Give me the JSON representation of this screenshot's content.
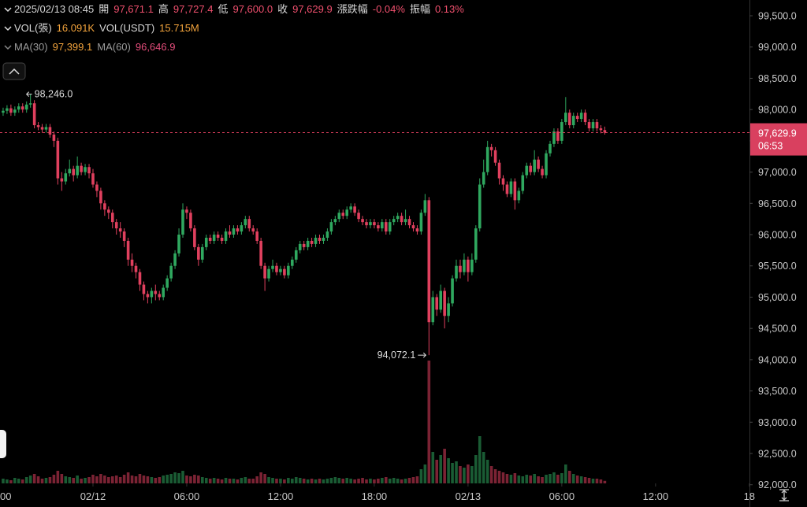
{
  "header": {
    "time": "2025/02/13 08:45",
    "ohlc": [
      [
        "開",
        "97,671.1"
      ],
      [
        "高",
        "97,727.4"
      ],
      [
        "低",
        "97,600.0"
      ],
      [
        "收",
        "97,629.9"
      ],
      [
        "漲跌幅",
        "-0.04%"
      ],
      [
        "振幅",
        "0.13%"
      ]
    ],
    "vol": [
      [
        "VOL(張)",
        "16.091K"
      ],
      [
        "VOL(USDT)",
        "15.715M"
      ]
    ],
    "ma": [
      [
        "MA(30)",
        "97,399.1"
      ],
      [
        "MA(60)",
        "96,646.9"
      ]
    ]
  },
  "chart_data": {
    "type": "candlestick",
    "up_color": "#2fa85f",
    "down_color": "#e0405e",
    "xlim": [
      -5.95,
      42.06
    ],
    "xticks": [
      {
        "value": -6,
        "label": "00"
      },
      {
        "value": 0,
        "label": "02/12"
      },
      {
        "value": 6,
        "label": "06:00"
      },
      {
        "value": 12,
        "label": "12:00"
      },
      {
        "value": 18,
        "label": "18:00"
      },
      {
        "value": 24,
        "label": "02/13"
      },
      {
        "value": 30,
        "label": "06:00"
      },
      {
        "value": 36,
        "label": "12:00"
      },
      {
        "value": 42,
        "label": "18"
      }
    ],
    "ylim": [
      91644,
      99752
    ],
    "yticks": [
      {
        "value": 92000,
        "label": "92,000.0"
      },
      {
        "value": 92500,
        "label": "92,500.0"
      },
      {
        "value": 93000,
        "label": "93,000.0"
      },
      {
        "value": 93500,
        "label": "93,500.0"
      },
      {
        "value": 94000,
        "label": "94,000.0"
      },
      {
        "value": 94500,
        "label": "94,500.0"
      },
      {
        "value": 95000,
        "label": "95,000.0"
      },
      {
        "value": 95500,
        "label": "95,500.0"
      },
      {
        "value": 96000,
        "label": "96,000.0"
      },
      {
        "value": 96500,
        "label": "96,500.0"
      },
      {
        "value": 97000,
        "label": "97,000.0"
      },
      {
        "value": 97500,
        "label": "97,500.0"
      },
      {
        "value": 98000,
        "label": "98,000.0"
      },
      {
        "value": 98500,
        "label": "98,500.0"
      },
      {
        "value": 99000,
        "label": "99,000.0"
      },
      {
        "value": 99500,
        "label": "99,500.0"
      }
    ],
    "vlim": [
      0,
      1000
    ],
    "last_price": {
      "value": 97629.9,
      "label": "97,629.9"
    },
    "countdown": "06:53",
    "high_label": {
      "value": 98246,
      "label": "98,246.0"
    },
    "low_label": {
      "value": 94072.1,
      "label": "94,072.1"
    },
    "x": [
      -5.75,
      -5.5,
      -5.25,
      -5,
      -4.75,
      -4.5,
      -4.25,
      -4,
      -3.75,
      -3.5,
      -3.25,
      -3,
      -2.75,
      -2.5,
      -2.25,
      -2,
      -1.75,
      -1.5,
      -1.25,
      -1,
      -0.75,
      -0.5,
      -0.25,
      0,
      0.25,
      0.5,
      0.75,
      1,
      1.25,
      1.5,
      1.75,
      2,
      2.25,
      2.5,
      2.75,
      3,
      3.25,
      3.5,
      3.75,
      4,
      4.25,
      4.5,
      4.75,
      5,
      5.25,
      5.5,
      5.75,
      6,
      6.25,
      6.5,
      6.75,
      7,
      7.25,
      7.5,
      7.75,
      8,
      8.25,
      8.5,
      8.75,
      9,
      9.25,
      9.5,
      9.75,
      10,
      10.25,
      10.5,
      10.75,
      11,
      11.25,
      11.5,
      11.75,
      12,
      12.25,
      12.5,
      12.75,
      13,
      13.25,
      13.5,
      13.75,
      14,
      14.25,
      14.5,
      14.75,
      15,
      15.25,
      15.5,
      15.75,
      16,
      16.25,
      16.5,
      16.75,
      17,
      17.25,
      17.5,
      17.75,
      18,
      18.25,
      18.5,
      18.75,
      19,
      19.25,
      19.5,
      19.75,
      20,
      20.25,
      20.5,
      20.75,
      21,
      21.25,
      21.5,
      21.75,
      22,
      22.25,
      22.5,
      22.75,
      23,
      23.25,
      23.5,
      23.75,
      24,
      24.25,
      24.5,
      24.75,
      25,
      25.25,
      25.5,
      25.75,
      26,
      26.25,
      26.5,
      26.75,
      27,
      27.25,
      27.5,
      27.75,
      28,
      28.25,
      28.5,
      28.75,
      29,
      29.25,
      29.5,
      29.75,
      30,
      30.25,
      30.5,
      30.75,
      31,
      31.25,
      31.5,
      31.75,
      32,
      32.25,
      32.5,
      32.75
    ],
    "open": [
      97950,
      97980,
      98020,
      97950,
      98000,
      98050,
      98000,
      98080,
      98100,
      97750,
      97720,
      97680,
      97720,
      97600,
      97500,
      96900,
      96850,
      96980,
      97050,
      96950,
      97100,
      97000,
      97080,
      96980,
      96800,
      96700,
      96500,
      96400,
      96350,
      96200,
      96100,
      96050,
      95900,
      95600,
      95500,
      95400,
      95200,
      95050,
      95000,
      95100,
      95050,
      95000,
      95150,
      95300,
      95500,
      95700,
      96000,
      96400,
      96350,
      96100,
      95800,
      95600,
      95800,
      95950,
      95900,
      96000,
      95950,
      95900,
      96050,
      96000,
      96100,
      96050,
      96150,
      96250,
      96100,
      96050,
      95900,
      95500,
      95300,
      95450,
      95500,
      95400,
      95450,
      95350,
      95500,
      95600,
      95750,
      95850,
      95800,
      95900,
      95850,
      95950,
      95900,
      95950,
      96050,
      96200,
      96250,
      96350,
      96300,
      96400,
      96450,
      96350,
      96250,
      96200,
      96150,
      96200,
      96150,
      96100,
      96200,
      96050,
      96200,
      96250,
      96300,
      96200,
      96250,
      96150,
      96100,
      96050,
      96350,
      96550,
      94600,
      95000,
      94800,
      95100,
      94700,
      94900,
      95300,
      95500,
      95400,
      95600,
      95400,
      95600,
      96100,
      96800,
      97000,
      97400,
      97350,
      97150,
      96900,
      96800,
      96650,
      96850,
      96550,
      96700,
      96950,
      97100,
      97000,
      97200,
      97050,
      96950,
      97300,
      97450,
      97650,
      97500,
      97800,
      97950,
      97750,
      97900,
      97850,
      97950,
      97800,
      97700,
      97800,
      97700,
      97671.1
    ],
    "high": [
      98030,
      98070,
      98080,
      98050,
      98100,
      98100,
      98130,
      98246,
      98150,
      97800,
      97770,
      97770,
      97770,
      97650,
      97550,
      97000,
      97050,
      97200,
      97100,
      97250,
      97150,
      97130,
      97130,
      97050,
      96850,
      96750,
      96550,
      96450,
      96400,
      96250,
      96200,
      96100,
      95950,
      95700,
      95550,
      95450,
      95250,
      95100,
      95150,
      95200,
      95100,
      95200,
      95350,
      95550,
      95750,
      96100,
      96500,
      96450,
      96400,
      96150,
      95850,
      95850,
      96000,
      96000,
      96050,
      96050,
      96000,
      96100,
      96150,
      96150,
      96150,
      96200,
      96300,
      96300,
      96150,
      96100,
      95950,
      95550,
      95500,
      95600,
      95550,
      95500,
      95500,
      95550,
      95650,
      95800,
      95900,
      95900,
      95950,
      95950,
      96000,
      96000,
      96000,
      96100,
      96250,
      96300,
      96400,
      96400,
      96450,
      96500,
      96500,
      96400,
      96300,
      96250,
      96250,
      96250,
      96200,
      96250,
      96250,
      96250,
      96300,
      96350,
      96350,
      96400,
      96300,
      96200,
      96150,
      96400,
      96650,
      96600,
      95100,
      95050,
      95200,
      95150,
      95000,
      95350,
      95600,
      95600,
      95700,
      95650,
      95700,
      96150,
      96900,
      97200,
      97500,
      97450,
      97400,
      97200,
      96950,
      96850,
      96900,
      96900,
      96750,
      97000,
      97150,
      97150,
      97350,
      97250,
      97100,
      97350,
      97500,
      97700,
      97700,
      97850,
      98200,
      98000,
      97950,
      97950,
      98000,
      98000,
      97850,
      97850,
      97850,
      97750,
      97727.4
    ],
    "low": [
      97900,
      97930,
      97900,
      97900,
      97950,
      97950,
      97950,
      98030,
      97700,
      97670,
      97630,
      97630,
      97550,
      97400,
      96800,
      96700,
      96800,
      96930,
      96850,
      96900,
      96950,
      96950,
      96900,
      96750,
      96600,
      96400,
      96300,
      96250,
      96100,
      96000,
      95950,
      95800,
      95500,
      95400,
      95300,
      95100,
      94950,
      94900,
      94900,
      94950,
      94950,
      94950,
      95100,
      95250,
      95450,
      95650,
      95950,
      96250,
      96050,
      95750,
      95500,
      95550,
      95750,
      95850,
      95850,
      95900,
      95850,
      95850,
      95950,
      95950,
      96000,
      96000,
      96100,
      96050,
      96000,
      95850,
      95450,
      95100,
      95250,
      95400,
      95350,
      95350,
      95300,
      95300,
      95450,
      95550,
      95700,
      95750,
      95750,
      95800,
      95800,
      95850,
      95850,
      95900,
      96000,
      96150,
      96200,
      96250,
      96250,
      96350,
      96300,
      96200,
      96150,
      96100,
      96100,
      96100,
      96050,
      96050,
      96000,
      96000,
      96150,
      96200,
      96150,
      96150,
      96100,
      96050,
      96000,
      96000,
      96300,
      94072.1,
      94550,
      94700,
      94750,
      94500,
      94600,
      94850,
      95250,
      95300,
      95350,
      95250,
      95350,
      95550,
      96050,
      96750,
      96950,
      97250,
      97100,
      96800,
      96700,
      96600,
      96600,
      96400,
      96500,
      96650,
      96900,
      96950,
      96950,
      97000,
      96900,
      96900,
      97250,
      97400,
      97450,
      97450,
      97750,
      97700,
      97700,
      97800,
      97800,
      97750,
      97650,
      97650,
      97650,
      97620,
      97600
    ],
    "close": [
      97980,
      98020,
      97950,
      98000,
      98050,
      98000,
      98080,
      98100,
      97750,
      97720,
      97680,
      97720,
      97600,
      97500,
      96900,
      96850,
      96980,
      97050,
      96950,
      97100,
      97000,
      97080,
      96980,
      96800,
      96700,
      96500,
      96400,
      96350,
      96200,
      96100,
      96050,
      95900,
      95600,
      95500,
      95400,
      95200,
      95050,
      95000,
      95100,
      95050,
      95000,
      95150,
      95300,
      95500,
      95700,
      96000,
      96400,
      96350,
      96100,
      95800,
      95600,
      95800,
      95950,
      95900,
      96000,
      95950,
      95900,
      96050,
      96000,
      96100,
      96050,
      96150,
      96250,
      96100,
      96050,
      95900,
      95500,
      95300,
      95450,
      95500,
      95400,
      95450,
      95350,
      95500,
      95600,
      95750,
      95850,
      95800,
      95900,
      95850,
      95950,
      95900,
      95950,
      96050,
      96200,
      96250,
      96350,
      96300,
      96400,
      96450,
      96350,
      96250,
      96200,
      96150,
      96200,
      96150,
      96100,
      96200,
      96050,
      96200,
      96250,
      96300,
      96200,
      96250,
      96150,
      96100,
      96050,
      96350,
      96550,
      94600,
      95000,
      94800,
      95100,
      94700,
      94900,
      95300,
      95500,
      95400,
      95600,
      95400,
      95600,
      96100,
      96800,
      97000,
      97400,
      97350,
      97150,
      96900,
      96800,
      96650,
      96850,
      96550,
      96700,
      96950,
      97100,
      97000,
      97200,
      97050,
      96950,
      97300,
      97450,
      97650,
      97500,
      97800,
      97950,
      97750,
      97900,
      97850,
      97950,
      97800,
      97700,
      97800,
      97700,
      97671.1,
      97629.9
    ],
    "volume": [
      30,
      25,
      20,
      35,
      30,
      25,
      40,
      50,
      60,
      45,
      30,
      35,
      40,
      55,
      80,
      60,
      45,
      40,
      35,
      50,
      30,
      35,
      40,
      55,
      45,
      60,
      50,
      40,
      45,
      50,
      40,
      55,
      70,
      50,
      45,
      60,
      50,
      45,
      40,
      35,
      40,
      50,
      55,
      60,
      70,
      65,
      80,
      50,
      45,
      55,
      50,
      40,
      35,
      30,
      35,
      30,
      25,
      35,
      30,
      30,
      25,
      35,
      40,
      30,
      30,
      45,
      70,
      60,
      40,
      35,
      30,
      30,
      25,
      35,
      30,
      40,
      35,
      30,
      25,
      30,
      25,
      30,
      25,
      30,
      35,
      40,
      35,
      30,
      35,
      30,
      25,
      30,
      35,
      25,
      30,
      25,
      30,
      35,
      40,
      30,
      35,
      30,
      25,
      30,
      35,
      40,
      45,
      90,
      120,
      780,
      200,
      150,
      180,
      220,
      160,
      130,
      140,
      110,
      100,
      120,
      110,
      180,
      300,
      200,
      150,
      110,
      90,
      80,
      70,
      60,
      55,
      65,
      50,
      45,
      55,
      50,
      60,
      45,
      40,
      55,
      60,
      70,
      55,
      65,
      120,
      80,
      60,
      50,
      45,
      40,
      35,
      30,
      30,
      25,
      16.091
    ]
  }
}
